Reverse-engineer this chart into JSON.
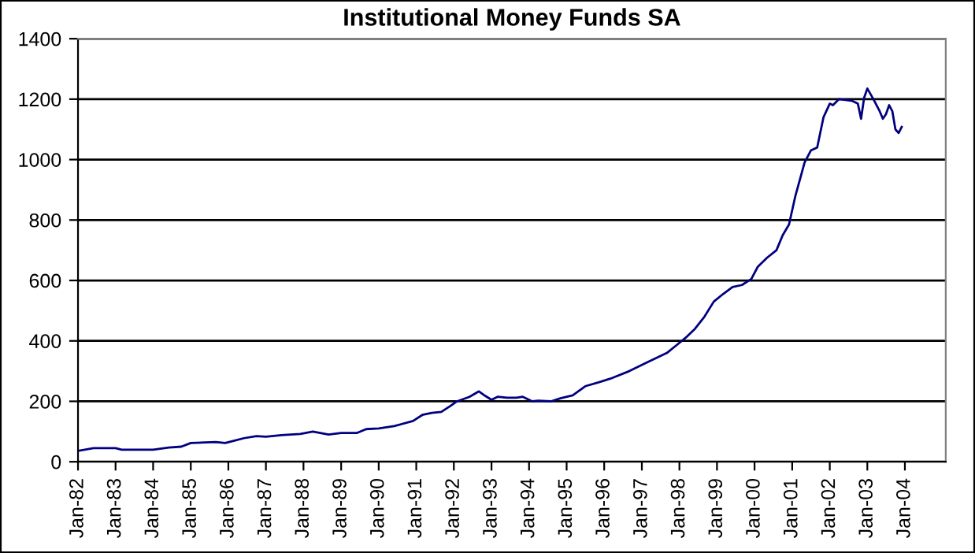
{
  "chart_data": {
    "type": "line",
    "title": "Institutional Money Funds SA",
    "x": [
      "1982-01",
      "1982-06",
      "1983-01",
      "1983-03",
      "1984-01",
      "1984-06",
      "1984-10",
      "1985-01",
      "1985-09",
      "1985-12",
      "1986-03",
      "1986-06",
      "1986-10",
      "1987-01",
      "1987-06",
      "1987-12",
      "1988-04",
      "1988-09",
      "1989-01",
      "1989-06",
      "1989-09",
      "1990-01",
      "1990-06",
      "1990-12",
      "1991-03",
      "1991-06",
      "1991-09",
      "1991-12",
      "1992-02",
      "1992-06",
      "1992-09",
      "1992-11",
      "1993-01",
      "1993-03",
      "1993-06",
      "1993-09",
      "1993-11",
      "1994-02",
      "1994-04",
      "1994-08",
      "1994-11",
      "1995-03",
      "1995-07",
      "1995-11",
      "1996-03",
      "1996-09",
      "1997-03",
      "1997-09",
      "1997-12",
      "1998-03",
      "1998-06",
      "1998-09",
      "1998-12",
      "1999-03",
      "1999-06",
      "1999-09",
      "1999-12",
      "2000-02",
      "2000-05",
      "2000-08",
      "2000-10",
      "2000-12",
      "2001-02",
      "2001-05",
      "2001-07",
      "2001-09",
      "2001-11",
      "2002-01",
      "2002-02",
      "2002-04",
      "2002-08",
      "2002-10",
      "2002-11",
      "2002-12",
      "2003-01",
      "2003-03",
      "2003-05",
      "2003-06",
      "2003-07",
      "2003-08",
      "2003-09",
      "2003-10",
      "2003-11",
      "2003-12"
    ],
    "series": [
      {
        "color": "#000080",
        "values": [
          36,
          45,
          45,
          40,
          40,
          47,
          50,
          62,
          65,
          62,
          70,
          78,
          85,
          83,
          88,
          92,
          100,
          90,
          95,
          95,
          108,
          110,
          118,
          135,
          155,
          162,
          165,
          185,
          200,
          215,
          233,
          218,
          205,
          215,
          212,
          212,
          215,
          200,
          202,
          200,
          210,
          220,
          250,
          262,
          275,
          300,
          330,
          360,
          385,
          410,
          440,
          480,
          530,
          555,
          578,
          585,
          605,
          645,
          675,
          700,
          750,
          785,
          880,
          990,
          1030,
          1040,
          1140,
          1185,
          1180,
          1200,
          1195,
          1185,
          1135,
          1205,
          1235,
          1200,
          1160,
          1135,
          1150,
          1180,
          1160,
          1100,
          1088,
          1108
        ]
      }
    ],
    "xlim": [
      "1982-01",
      "2005-02"
    ],
    "xticks": [
      {
        "value": "1982-01",
        "label": "Jan-82"
      },
      {
        "value": "1983-01",
        "label": "Jan-83"
      },
      {
        "value": "1984-01",
        "label": "Jan-84"
      },
      {
        "value": "1985-01",
        "label": "Jan-85"
      },
      {
        "value": "1986-01",
        "label": "Jan-86"
      },
      {
        "value": "1987-01",
        "label": "Jan-87"
      },
      {
        "value": "1988-01",
        "label": "Jan-88"
      },
      {
        "value": "1989-01",
        "label": "Jan-89"
      },
      {
        "value": "1990-01",
        "label": "Jan-90"
      },
      {
        "value": "1991-01",
        "label": "Jan-91"
      },
      {
        "value": "1992-01",
        "label": "Jan-92"
      },
      {
        "value": "1993-01",
        "label": "Jan-93"
      },
      {
        "value": "1994-01",
        "label": "Jan-94"
      },
      {
        "value": "1995-01",
        "label": "Jan-95"
      },
      {
        "value": "1996-01",
        "label": "Jan-96"
      },
      {
        "value": "1997-01",
        "label": "Jan-97"
      },
      {
        "value": "1998-01",
        "label": "Jan-98"
      },
      {
        "value": "1999-01",
        "label": "Jan-99"
      },
      {
        "value": "2000-01",
        "label": "Jan-00"
      },
      {
        "value": "2001-01",
        "label": "Jan-01"
      },
      {
        "value": "2002-01",
        "label": "Jan-02"
      },
      {
        "value": "2003-01",
        "label": "Jan-03"
      },
      {
        "value": "2004-01",
        "label": "Jan-04"
      }
    ],
    "ylim": [
      0,
      1400
    ],
    "yticks": [
      0,
      200,
      400,
      600,
      800,
      1000,
      1200,
      1400
    ],
    "grid": "y",
    "marker": "none",
    "line_style": "solid",
    "legend": false
  }
}
